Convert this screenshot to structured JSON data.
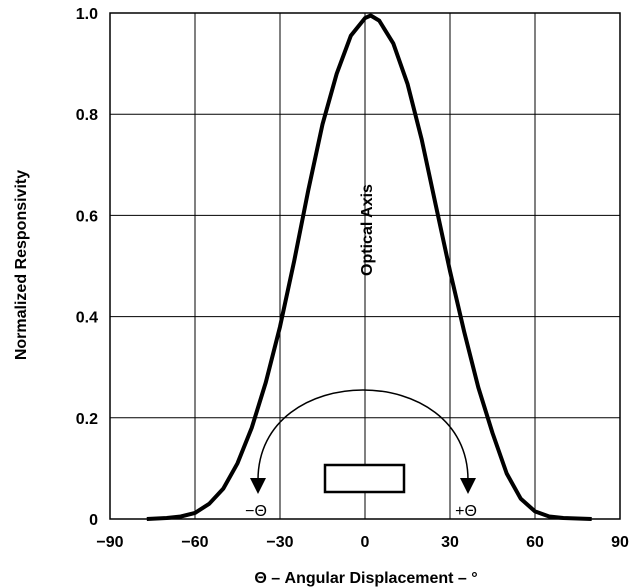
{
  "chart_data": {
    "type": "line",
    "xlabel": "Θ – Angular Displacement – °",
    "ylabel": "Normalized Responsivity",
    "xlim": [
      -90,
      90
    ],
    "ylim": [
      0,
      1.0
    ],
    "x_ticks": [
      -90,
      -60,
      -30,
      0,
      30,
      60,
      90
    ],
    "x_tick_labels": [
      "−90",
      "−60",
      "−30",
      "0",
      "30",
      "60",
      "90"
    ],
    "y_ticks": [
      0,
      0.2,
      0.4,
      0.6,
      0.8,
      1.0
    ],
    "y_tick_labels": [
      "0",
      "0.2",
      "0.4",
      "0.6",
      "0.8",
      "1.0"
    ],
    "grid": true,
    "series": [
      {
        "x": [
          -77,
          -70,
          -65,
          -60,
          -55,
          -50,
          -45,
          -40,
          -35,
          -30,
          -25,
          -20,
          -15,
          -10,
          -5,
          0,
          2,
          5,
          10,
          15,
          20,
          25,
          30,
          35,
          40,
          45,
          50,
          55,
          60,
          65,
          70,
          80
        ],
        "y": [
          0.0,
          0.002,
          0.005,
          0.012,
          0.03,
          0.06,
          0.11,
          0.18,
          0.27,
          0.38,
          0.51,
          0.65,
          0.78,
          0.88,
          0.955,
          0.99,
          0.995,
          0.985,
          0.94,
          0.86,
          0.75,
          0.62,
          0.49,
          0.37,
          0.26,
          0.17,
          0.09,
          0.04,
          0.015,
          0.005,
          0.002,
          0.0
        ]
      }
    ],
    "annotations": {
      "optical_axis": "Optical Axis",
      "minus_theta": "−Θ",
      "plus_theta": "+Θ"
    }
  }
}
